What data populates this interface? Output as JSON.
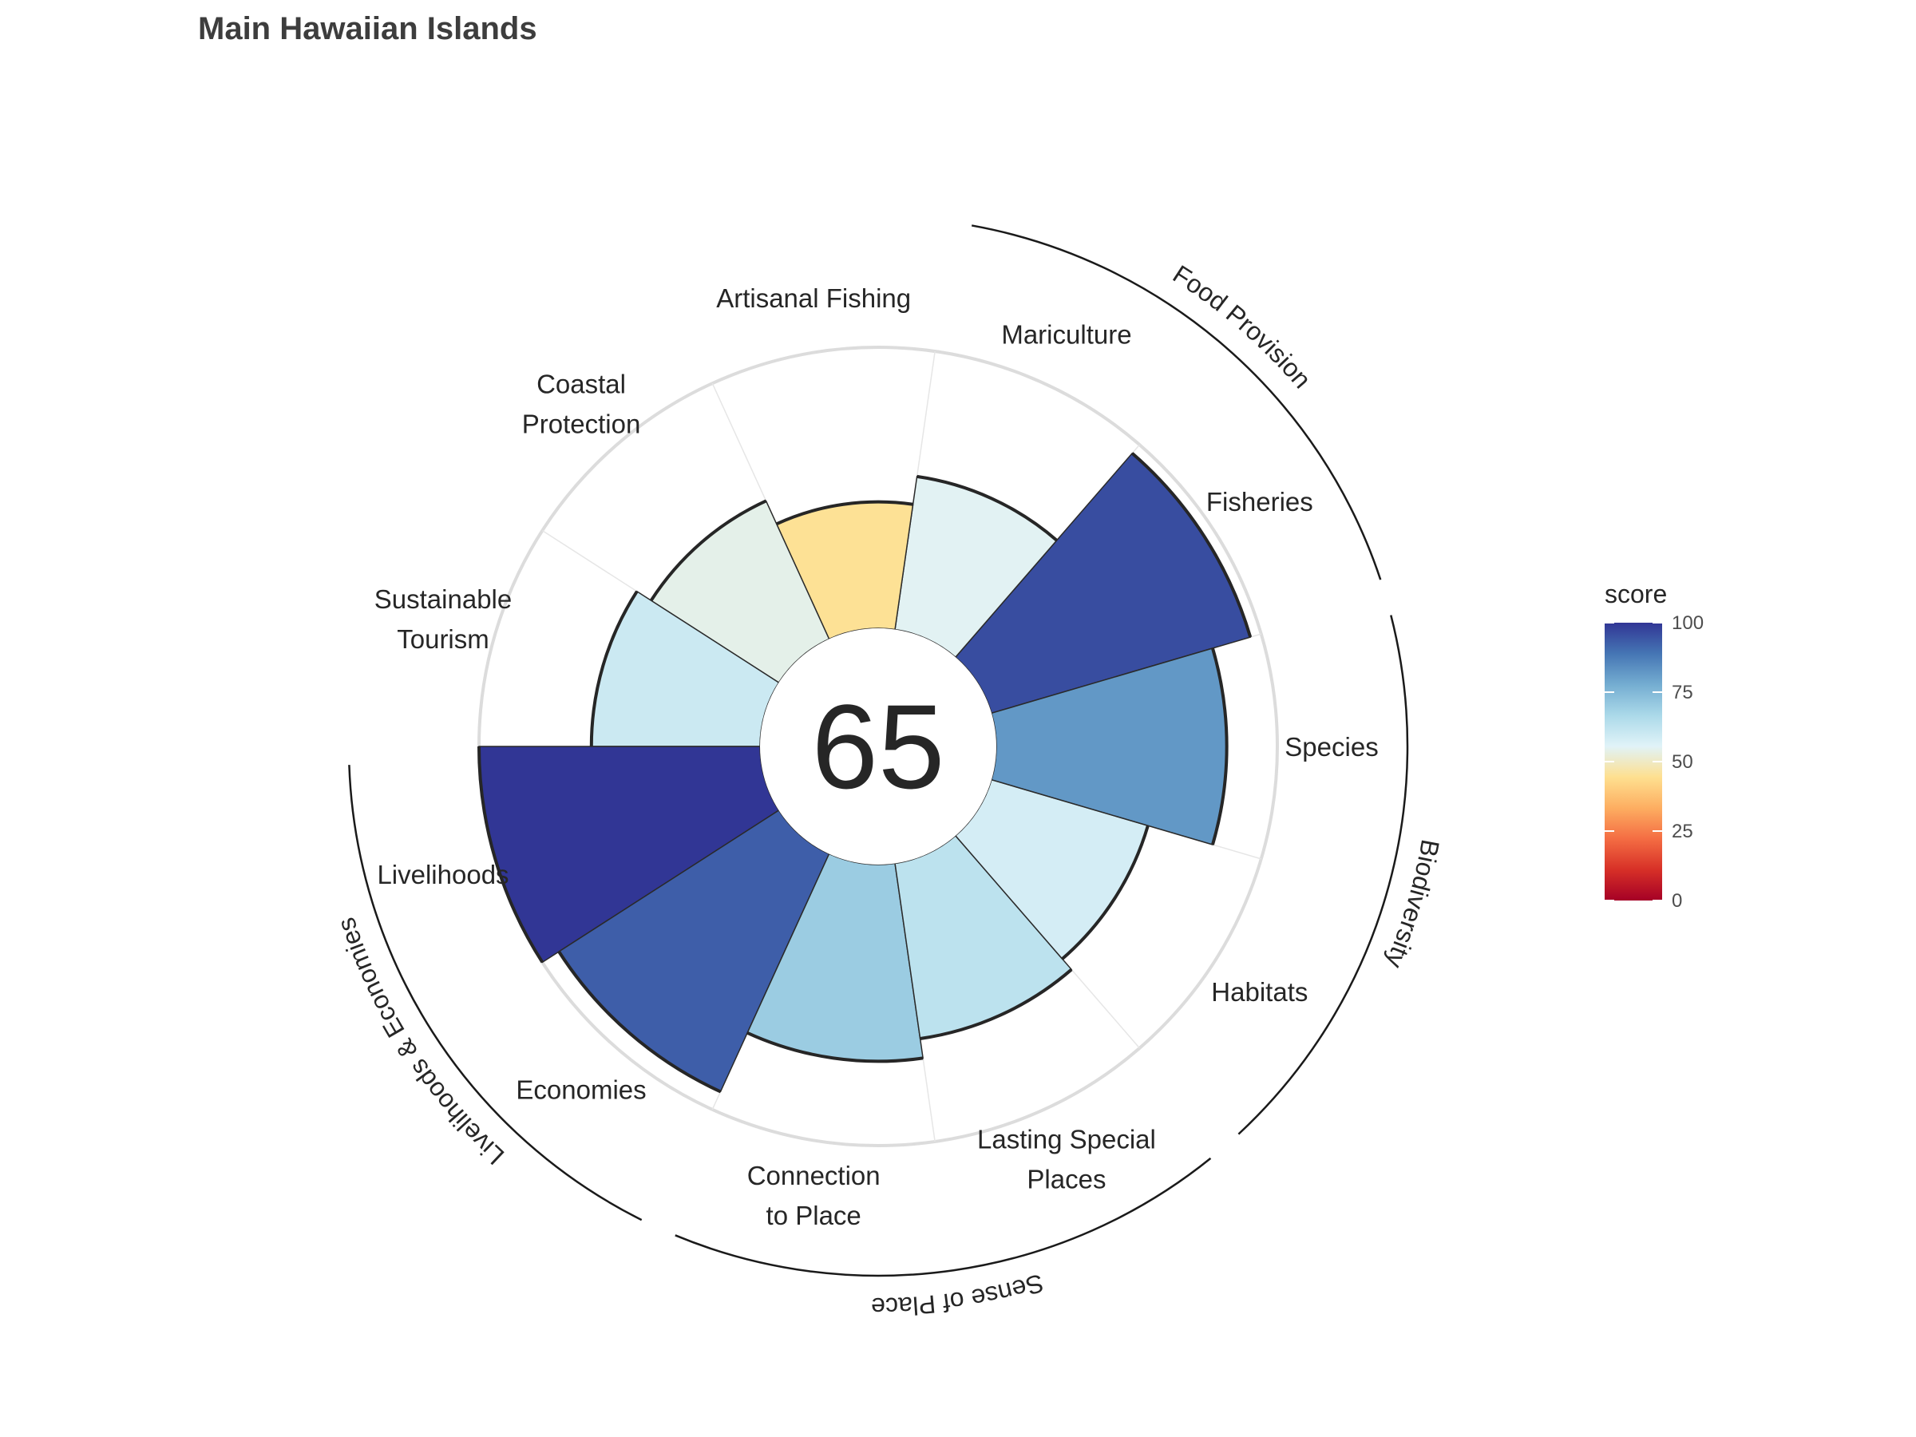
{
  "title": "Main Hawaiian Islands",
  "center_score": "65",
  "chart_data": {
    "type": "flower",
    "title": "Main Hawaiian Islands",
    "value_range": [
      0,
      100
    ],
    "petals": [
      {
        "name": "Fisheries",
        "label_lines": [
          "Fisheries"
        ],
        "value": 96,
        "weight": 1,
        "group": "Food Provision"
      },
      {
        "name": "Mariculture",
        "label_lines": [
          "Mariculture"
        ],
        "value": 55,
        "weight": 1,
        "group": "Food Provision"
      },
      {
        "name": "Artisanal Fishing",
        "label_lines": [
          "Artisanal Fishing"
        ],
        "value": 45,
        "weight": 1,
        "group": null
      },
      {
        "name": "Coastal Protection",
        "label_lines": [
          "Coastal",
          "Protection"
        ],
        "value": 54,
        "weight": 1,
        "group": null
      },
      {
        "name": "Sustainable Tourism",
        "label_lines": [
          "Sustainable",
          "Tourism"
        ],
        "value": 60,
        "weight": 1,
        "group": null
      },
      {
        "name": "Livelihoods",
        "label_lines": [
          "Livelihoods"
        ],
        "value": 100,
        "weight": 1,
        "group": "Livelihoods & Economies"
      },
      {
        "name": "Economies",
        "label_lines": [
          "Economies"
        ],
        "value": 93,
        "weight": 1,
        "group": "Livelihoods & Economies"
      },
      {
        "name": "Connection to Place",
        "label_lines": [
          "Connection",
          "to Place"
        ],
        "value": 70,
        "weight": 1,
        "group": "Sense of Place"
      },
      {
        "name": "Lasting Special Places",
        "label_lines": [
          "Lasting Special",
          "Places"
        ],
        "value": 63,
        "weight": 1,
        "group": "Sense of Place"
      },
      {
        "name": "Habitats",
        "label_lines": [
          "Habitats"
        ],
        "value": 58,
        "weight": 1,
        "group": "Biodiversity"
      },
      {
        "name": "Species",
        "label_lines": [
          "Species"
        ],
        "value": 82,
        "weight": 1,
        "group": "Biodiversity"
      }
    ],
    "groups": [
      "Food Provision",
      "Livelihoods & Economies",
      "Sense of Place",
      "Biodiversity"
    ],
    "legend": {
      "title": "score",
      "ticks": [
        0,
        25,
        50,
        75,
        100
      ],
      "colors": [
        "#a50026",
        "#d73027",
        "#f46d43",
        "#fdae61",
        "#fee090",
        "#e0f3f8",
        "#abd9e9",
        "#74add1",
        "#4575b4",
        "#313695"
      ],
      "placement": "right"
    }
  }
}
